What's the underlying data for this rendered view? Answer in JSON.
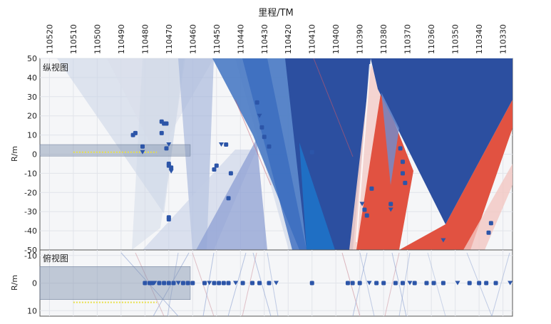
{
  "chart_data": {
    "type": "scatter",
    "title": "里程/TM",
    "x": {
      "label": "里程/TM",
      "ticks": [
        110520,
        110510,
        110500,
        110490,
        110480,
        110470,
        110460,
        110450,
        110440,
        110430,
        110420,
        110410,
        110400,
        110390,
        110380,
        110370,
        110360,
        110350,
        110340,
        110330
      ],
      "range": [
        110524,
        110326
      ]
    },
    "panels": [
      {
        "name": "纵视图",
        "ylabel": "R/m",
        "ylim": [
          -50,
          50
        ],
        "yticks": [
          50,
          40,
          30,
          20,
          10,
          0,
          -10,
          -20,
          -30,
          -40,
          -50
        ],
        "band": {
          "x_from": 110524,
          "x_to": 110461,
          "y_from": -1,
          "y_to": 5
        },
        "yellow_line": {
          "x_from": 110510,
          "x_to": 110475,
          "y": 1
        },
        "points": [
          [
            110485,
            10
          ],
          [
            110484,
            11
          ],
          [
            110481,
            4
          ],
          [
            110481,
            1
          ],
          [
            110473,
            17
          ],
          [
            110472,
            16
          ],
          [
            110471,
            16
          ],
          [
            110473,
            11
          ],
          [
            110470,
            5
          ],
          [
            110471,
            3
          ],
          [
            110470,
            -5
          ],
          [
            110470,
            -6
          ],
          [
            110469,
            -7
          ],
          [
            110469,
            -9
          ],
          [
            110470,
            -33
          ],
          [
            110470,
            -34
          ],
          [
            110451,
            -8
          ],
          [
            110450,
            -6
          ],
          [
            110448,
            5
          ],
          [
            110446,
            5
          ],
          [
            110444,
            -10
          ],
          [
            110445,
            -23
          ],
          [
            110433,
            27
          ],
          [
            110432,
            20
          ],
          [
            110431,
            14
          ],
          [
            110430,
            9
          ],
          [
            110428,
            4
          ],
          [
            110410,
            1
          ],
          [
            110389,
            -26
          ],
          [
            110388,
            -29
          ],
          [
            110387,
            -32
          ],
          [
            110385,
            -18
          ],
          [
            110377,
            -26
          ],
          [
            110377,
            -29
          ],
          [
            110373,
            3
          ],
          [
            110372,
            -4
          ],
          [
            110372,
            -10
          ],
          [
            110371,
            -15
          ],
          [
            110355,
            -45
          ],
          [
            110336,
            -41
          ],
          [
            110335,
            -36
          ]
        ]
      },
      {
        "name": "俯视图",
        "ylabel": "R/m",
        "ylim": [
          -12,
          12
        ],
        "yticks": [
          -10,
          0,
          10
        ],
        "band": {
          "x_from": 110524,
          "x_to": 110461,
          "y_from": -6,
          "y_to": 6
        },
        "yellow_line": {
          "x_from": 110510,
          "x_to": 110475,
          "y": 7
        },
        "points": [
          [
            110480,
            0
          ],
          [
            110478,
            0
          ],
          [
            110477,
            0
          ],
          [
            110476,
            0
          ],
          [
            110474,
            0
          ],
          [
            110472,
            0
          ],
          [
            110470,
            0
          ],
          [
            110468,
            0
          ],
          [
            110466,
            0
          ],
          [
            110464,
            0
          ],
          [
            110462,
            0
          ],
          [
            110460,
            0
          ],
          [
            110455,
            0
          ],
          [
            110453,
            0
          ],
          [
            110451,
            0
          ],
          [
            110449,
            0
          ],
          [
            110447,
            0
          ],
          [
            110445,
            0
          ],
          [
            110442,
            0
          ],
          [
            110439,
            0
          ],
          [
            110435,
            0
          ],
          [
            110432,
            0
          ],
          [
            110428,
            0
          ],
          [
            110425,
            0
          ],
          [
            110410,
            0
          ],
          [
            110395,
            0
          ],
          [
            110393,
            0
          ],
          [
            110390,
            0
          ],
          [
            110386,
            0
          ],
          [
            110383,
            0
          ],
          [
            110380,
            0
          ],
          [
            110375,
            0
          ],
          [
            110372,
            0
          ],
          [
            110369,
            0
          ],
          [
            110367,
            0
          ],
          [
            110362,
            0
          ],
          [
            110359,
            0
          ],
          [
            110355,
            0
          ],
          [
            110349,
            0
          ],
          [
            110344,
            0
          ],
          [
            110340,
            0
          ],
          [
            110337,
            0
          ],
          [
            110333,
            0
          ],
          [
            110327,
            0
          ]
        ]
      }
    ]
  }
}
